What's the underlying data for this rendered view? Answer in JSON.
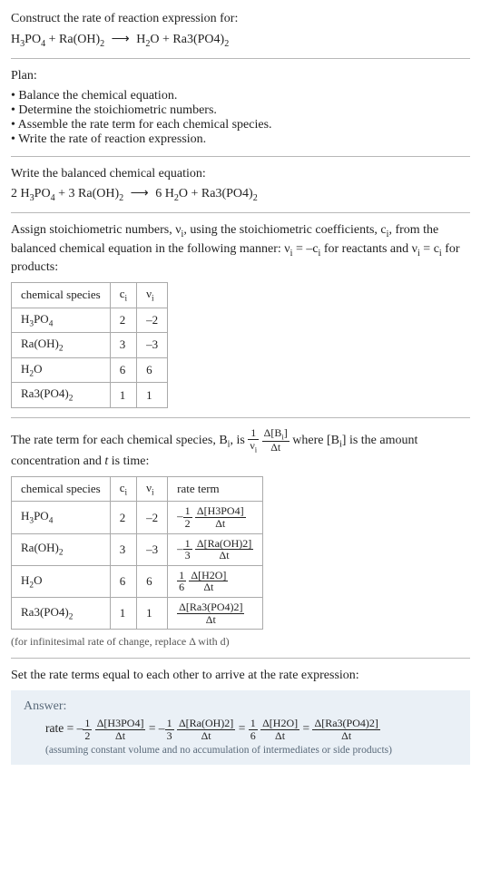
{
  "header": {
    "construct_label": "Construct the rate of reaction expression for:",
    "equation_html": "H<span class='sub'>3</span>PO<span class='sub'>4</span> + Ra(OH)<span class='sub'>2</span> <span class='arrow'>⟶</span> H<span class='sub'>2</span>O + Ra3(PO4)<span class='sub'>2</span>"
  },
  "plan": {
    "label": "Plan:",
    "items": [
      "Balance the chemical equation.",
      "Determine the stoichiometric numbers.",
      "Assemble the rate term for each chemical species.",
      "Write the rate of reaction expression."
    ]
  },
  "balanced": {
    "label": "Write the balanced chemical equation:",
    "equation_html": "2 H<span class='sub'>3</span>PO<span class='sub'>4</span> + 3 Ra(OH)<span class='sub'>2</span> <span class='arrow'>⟶</span> 6 H<span class='sub'>2</span>O + Ra3(PO4)<span class='sub'>2</span>"
  },
  "assign": {
    "para_html": "Assign stoichiometric numbers, ν<span class='sub'>i</span>, using the stoichiometric coefficients, c<span class='sub'>i</span>, from the balanced chemical equation in the following manner: ν<span class='sub'>i</span> = –c<span class='sub'>i</span> for reactants and ν<span class='sub'>i</span> = c<span class='sub'>i</span> for products:",
    "table": {
      "headers": [
        "chemical species",
        "c<span class='sub'>i</span>",
        "ν<span class='sub'>i</span>"
      ],
      "rows": [
        [
          "H<span class='sub'>3</span>PO<span class='sub'>4</span>",
          "2",
          "–2"
        ],
        [
          "Ra(OH)<span class='sub'>2</span>",
          "3",
          "–3"
        ],
        [
          "H<span class='sub'>2</span>O",
          "6",
          "6"
        ],
        [
          "Ra3(PO4)<span class='sub'>2</span>",
          "1",
          "1"
        ]
      ]
    }
  },
  "rateterm": {
    "para_html": "The rate term for each chemical species, B<span class='sub'>i</span>, is <span class='inline-math'><span class='frac'><span class='num'>1</span><span class='den'>ν<span class='sub'>i</span></span></span> <span class='frac'><span class='num'>Δ[B<span class='sub'>i</span>]</span><span class='den'>Δt</span></span></span> where [B<span class='sub'>i</span>] is the amount concentration and <i>t</i> is time:",
    "table": {
      "headers": [
        "chemical species",
        "c<span class='sub'>i</span>",
        "ν<span class='sub'>i</span>",
        "rate term"
      ],
      "rows": [
        [
          "H<span class='sub'>3</span>PO<span class='sub'>4</span>",
          "2",
          "–2",
          "–<span class='frac'><span class='num'>1</span><span class='den'>2</span></span> <span class='frac'><span class='num'>Δ[H3PO4]</span><span class='den'>Δt</span></span>"
        ],
        [
          "Ra(OH)<span class='sub'>2</span>",
          "3",
          "–3",
          "–<span class='frac'><span class='num'>1</span><span class='den'>3</span></span> <span class='frac'><span class='num'>Δ[Ra(OH)2]</span><span class='den'>Δt</span></span>"
        ],
        [
          "H<span class='sub'>2</span>O",
          "6",
          "6",
          "<span class='frac'><span class='num'>1</span><span class='den'>6</span></span> <span class='frac'><span class='num'>Δ[H2O]</span><span class='den'>Δt</span></span>"
        ],
        [
          "Ra3(PO4)<span class='sub'>2</span>",
          "1",
          "1",
          "<span class='frac'><span class='num'>Δ[Ra3(PO4)2]</span><span class='den'>Δt</span></span>"
        ]
      ]
    },
    "note": "(for infinitesimal rate of change, replace Δ with d)"
  },
  "final": {
    "para": "Set the rate terms equal to each other to arrive at the rate expression:",
    "answer_label": "Answer:",
    "answer_html": "rate = –<span class='frac'><span class='num'>1</span><span class='den'>2</span></span> <span class='frac'><span class='num'>Δ[H3PO4]</span><span class='den'>Δt</span></span> = –<span class='frac'><span class='num'>1</span><span class='den'>3</span></span> <span class='frac'><span class='num'>Δ[Ra(OH)2]</span><span class='den'>Δt</span></span> = <span class='frac'><span class='num'>1</span><span class='den'>6</span></span> <span class='frac'><span class='num'>Δ[H2O]</span><span class='den'>Δt</span></span> = <span class='frac'><span class='num'>Δ[Ra3(PO4)2]</span><span class='den'>Δt</span></span>",
    "answer_note": "(assuming constant volume and no accumulation of intermediates or side products)"
  },
  "style": {
    "background": "#ffffff",
    "text_color": "#222222",
    "rule_color": "#b8b8b8",
    "table_border": "#aaaaaa",
    "answer_bg": "#eaf0f6",
    "answer_label_color": "#5a6a7a",
    "body_fontsize": 14,
    "table_fontsize": 13,
    "note_fontsize": 12
  }
}
